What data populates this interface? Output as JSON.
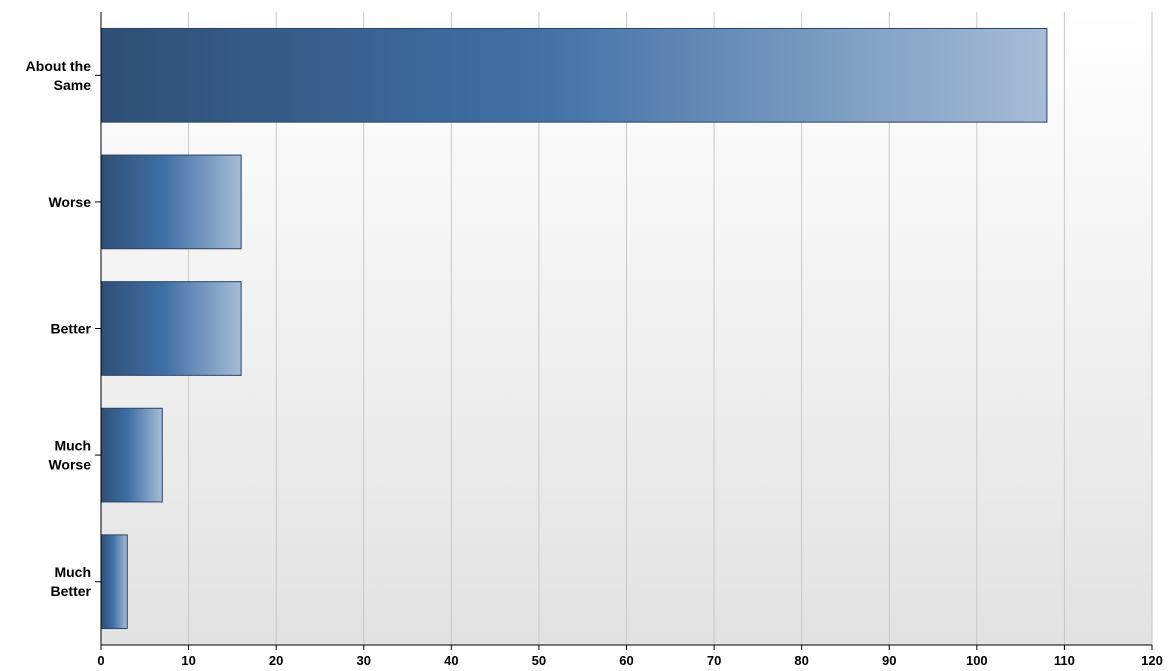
{
  "chart_data": {
    "type": "bar",
    "orientation": "horizontal",
    "title": "",
    "xlabel": "",
    "ylabel": "",
    "categories": [
      [
        "About the",
        "Same"
      ],
      [
        "Worse"
      ],
      [
        "Better"
      ],
      [
        "Much",
        "Worse"
      ],
      [
        "Much",
        "Better"
      ]
    ],
    "values": [
      108,
      16,
      16,
      7,
      3
    ],
    "xlim": [
      0,
      120
    ],
    "xticks": [
      0,
      10,
      20,
      30,
      40,
      50,
      60,
      70,
      80,
      90,
      100,
      110,
      120
    ],
    "grid": "vertical",
    "legend": "none",
    "colors": {
      "bar_dark": "#2f4f75",
      "bar_mid": "#3f6fa5",
      "bar_light": "#a6bcd6",
      "bar_edge": "#2a4466",
      "plot_bg_top": "#ffffff",
      "plot_bg_bottom": "#e2e2e2",
      "grid": "#c8c8c8",
      "axis": "#000000"
    }
  }
}
